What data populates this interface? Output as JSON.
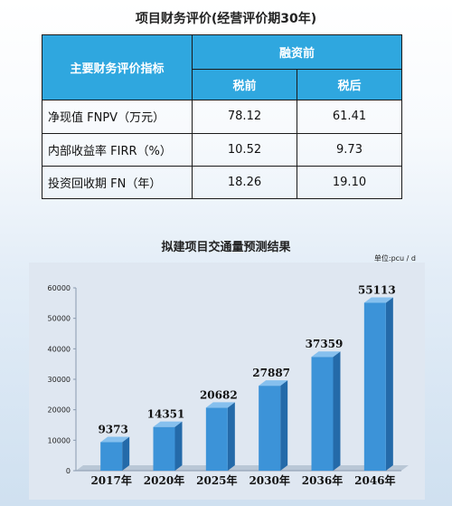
{
  "table": {
    "title": "项目财务评价(经营评价期30年)",
    "header_indicator": "主要财务评价指标",
    "header_group": "融资前",
    "header_pretax": "税前",
    "header_aftertax": "税后",
    "rows": [
      {
        "label": "净现值 FNPV（万元）",
        "pretax": "78.12",
        "aftertax": "61.41"
      },
      {
        "label": "内部收益率 FIRR（%）",
        "pretax": "10.52",
        "aftertax": "9.73"
      },
      {
        "label": "投资回收期 FN（年）",
        "pretax": "18.26",
        "aftertax": "19.10"
      }
    ]
  },
  "chart_data": {
    "type": "bar",
    "title": "拟建项目交通量预测结果",
    "unit_label": "单位:pcu / d",
    "categories": [
      "2017年",
      "2020年",
      "2025年",
      "2030年",
      "2036年",
      "2046年"
    ],
    "values": [
      9373,
      14351,
      20682,
      27887,
      37359,
      55113
    ],
    "data_labels": [
      "9373",
      "14351",
      "20682",
      "27887",
      "37359",
      "55113"
    ],
    "ylim": [
      0,
      60000
    ],
    "yticks": [
      0,
      10000,
      20000,
      30000,
      40000,
      50000,
      60000
    ],
    "ytick_labels": [
      "0",
      "10000",
      "20000",
      "30000",
      "40000",
      "50000",
      "60000"
    ],
    "grid": false,
    "legend": "none",
    "colors": {
      "bar_front": "#3c93d8",
      "bar_side": "#246aa9",
      "bar_top": "#86c0ee",
      "header": "#2fa7df"
    }
  }
}
